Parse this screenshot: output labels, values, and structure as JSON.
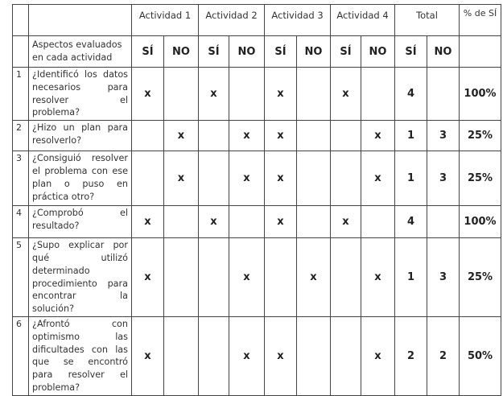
{
  "header": {
    "activities": [
      "Actividad 1",
      "Actividad 2",
      "Actividad 3",
      "Actividad 4"
    ],
    "total": "Total",
    "percent": "% de SÍ",
    "aspects": "Aspectos evaluados en cada actividad",
    "yes": "SÍ",
    "no": "NO"
  },
  "rows": [
    {
      "n": "1",
      "q": "¿Identificó los datos necesarios para resolver el problema?",
      "marks": [
        "x",
        "",
        "x",
        "",
        "x",
        "",
        "x",
        ""
      ],
      "yes": "4",
      "no": "",
      "pct": "100%"
    },
    {
      "n": "2",
      "q": "¿Hizo un plan para resolverlo?",
      "marks": [
        "",
        "x",
        "",
        "x",
        "x",
        "",
        "",
        "x"
      ],
      "yes": "1",
      "no": "3",
      "pct": "25%"
    },
    {
      "n": "3",
      "q": "¿Consiguió resolver el problema con ese plan o puso en práctica otro?",
      "marks": [
        "",
        "x",
        "",
        "x",
        "x",
        "",
        "",
        "x"
      ],
      "yes": "1",
      "no": "3",
      "pct": "25%"
    },
    {
      "n": "4",
      "q": "¿Comprobó el resultado?",
      "marks": [
        "x",
        "",
        "x",
        "",
        "x",
        "",
        "x",
        ""
      ],
      "yes": "4",
      "no": "",
      "pct": "100%"
    },
    {
      "n": "5",
      "q": "¿Supo explicar por qué utilizó determinado procedimiento para encontrar la solución?",
      "marks": [
        "x",
        "",
        "",
        "x",
        "",
        "x",
        "",
        "x"
      ],
      "yes": "1",
      "no": "3",
      "pct": "25%"
    },
    {
      "n": "6",
      "q": "¿Afrontó con optimismo las dificultades con las que se encontró para resolver el problema?",
      "marks": [
        "x",
        "",
        "",
        "x",
        "x",
        "",
        "",
        "x"
      ],
      "yes": "2",
      "no": "2",
      "pct": "50%"
    }
  ]
}
